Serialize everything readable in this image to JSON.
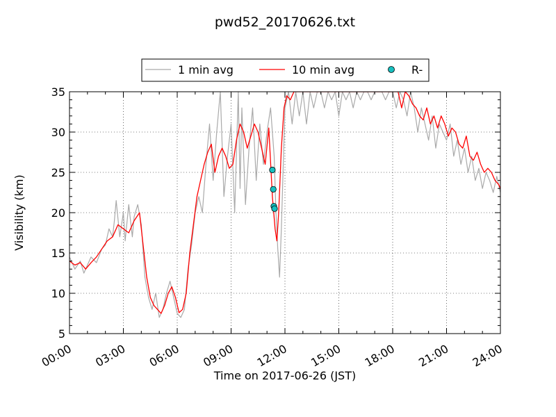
{
  "chart_data": {
    "type": "line",
    "title": "pwd52_20170626.txt",
    "xlabel": "Time on 2017-06-26 (JST)",
    "ylabel": "Visibility (km)",
    "xlim_hours": [
      0,
      24
    ],
    "ylim": [
      5,
      35
    ],
    "x_tick_labels": [
      "00:00",
      "03:00",
      "06:00",
      "09:00",
      "12:00",
      "15:00",
      "18:00",
      "21:00",
      "24:00"
    ],
    "y_ticks": [
      5,
      10,
      15,
      20,
      25,
      30,
      35
    ],
    "grid": true,
    "legend_position": "top-center",
    "series": [
      {
        "name": "1 min avg",
        "color": "#a9a9a9",
        "style": "line",
        "x_hours": [
          0,
          0.3,
          0.6,
          0.8,
          1.0,
          1.2,
          1.5,
          1.8,
          2.0,
          2.2,
          2.4,
          2.5,
          2.6,
          2.8,
          3.0,
          3.1,
          3.3,
          3.5,
          3.6,
          3.8,
          4.0,
          4.2,
          4.4,
          4.6,
          4.8,
          5.0,
          5.2,
          5.4,
          5.6,
          5.8,
          6.0,
          6.2,
          6.4,
          6.6,
          6.8,
          7.0,
          7.2,
          7.4,
          7.6,
          7.8,
          8.0,
          8.2,
          8.4,
          8.6,
          8.8,
          9.0,
          9.2,
          9.4,
          9.5,
          9.6,
          9.8,
          10.0,
          10.2,
          10.4,
          10.6,
          10.8,
          11.0,
          11.2,
          11.4,
          11.5,
          11.6,
          11.7,
          11.8,
          12.0,
          12.2,
          12.4,
          12.6,
          12.8,
          13.0,
          13.2,
          13.4,
          13.6,
          13.8,
          14.0,
          14.2,
          14.4,
          14.6,
          14.8,
          15.0,
          15.2,
          15.4,
          15.6,
          15.8,
          16.0,
          16.2,
          16.4,
          16.6,
          16.8,
          17.0,
          17.2,
          17.4,
          17.6,
          17.8,
          18.0,
          18.2,
          18.4,
          18.6,
          18.8,
          19.0,
          19.2,
          19.4,
          19.6,
          19.8,
          20.0,
          20.2,
          20.4,
          20.6,
          20.8,
          21.0,
          21.2,
          21.4,
          21.6,
          21.8,
          22.0,
          22.2,
          22.4,
          22.6,
          22.8,
          23.0,
          23.2,
          23.4,
          23.6,
          23.8,
          24.0
        ],
        "values": [
          14.5,
          13.0,
          14.0,
          12.5,
          13.5,
          14.5,
          13.8,
          15.5,
          16.0,
          18.0,
          17.0,
          19.0,
          21.5,
          17.0,
          20.0,
          16.5,
          21.0,
          17.0,
          19.5,
          21.0,
          18.5,
          12.0,
          9.5,
          8.0,
          10.0,
          7.0,
          8.0,
          10.0,
          11.5,
          9.5,
          7.5,
          7.0,
          8.0,
          13.0,
          16.0,
          20.0,
          22.0,
          20.0,
          26.0,
          31.0,
          24.0,
          30.0,
          35.0,
          22.0,
          27.0,
          31.0,
          20.0,
          35.0,
          23.0,
          33.0,
          21.0,
          28.0,
          33.0,
          24.0,
          31.0,
          26.0,
          30.0,
          33.0,
          27.0,
          20.0,
          15.5,
          12.0,
          18.0,
          33.0,
          35.0,
          31.0,
          35.0,
          32.0,
          35.0,
          31.0,
          35.0,
          33.0,
          35.0,
          35.0,
          33.0,
          35.0,
          34.0,
          35.0,
          32.0,
          35.0,
          34.0,
          35.0,
          33.0,
          35.0,
          34.0,
          35.0,
          35.0,
          34.0,
          35.0,
          35.0,
          35.0,
          34.0,
          35.0,
          35.0,
          33.0,
          35.0,
          34.0,
          32.0,
          35.0,
          33.0,
          30.0,
          33.0,
          31.0,
          29.0,
          32.0,
          28.0,
          31.0,
          30.0,
          29.0,
          31.0,
          27.0,
          29.0,
          26.0,
          28.0,
          25.0,
          27.0,
          24.0,
          25.5,
          23.0,
          25.0,
          24.0,
          22.5,
          24.5,
          22.5
        ]
      },
      {
        "name": "10 min avg",
        "color": "#ff0000",
        "style": "line",
        "x_hours": [
          0,
          0.3,
          0.6,
          0.9,
          1.2,
          1.5,
          1.8,
          2.1,
          2.4,
          2.7,
          3.0,
          3.3,
          3.6,
          3.9,
          4.1,
          4.3,
          4.5,
          4.7,
          4.9,
          5.1,
          5.3,
          5.5,
          5.7,
          5.9,
          6.1,
          6.3,
          6.5,
          6.7,
          6.9,
          7.1,
          7.3,
          7.5,
          7.7,
          7.9,
          8.1,
          8.3,
          8.5,
          8.7,
          8.9,
          9.1,
          9.3,
          9.5,
          9.7,
          9.9,
          10.1,
          10.3,
          10.5,
          10.7,
          10.9,
          11.1,
          11.3,
          11.45,
          11.55,
          11.65,
          11.8,
          11.95,
          12.1,
          12.3,
          12.5,
          12.7,
          12.9,
          13.1,
          13.3,
          13.5,
          13.7,
          13.9,
          14.1,
          14.3,
          14.5,
          14.7,
          14.9,
          15.1,
          15.3,
          15.5,
          15.7,
          15.9,
          16.1,
          16.3,
          16.5,
          16.7,
          16.9,
          17.1,
          17.3,
          17.5,
          17.7,
          17.9,
          18.1,
          18.3,
          18.5,
          18.7,
          18.9,
          19.1,
          19.3,
          19.5,
          19.7,
          19.9,
          20.1,
          20.3,
          20.5,
          20.7,
          20.9,
          21.1,
          21.3,
          21.5,
          21.7,
          21.9,
          22.1,
          22.3,
          22.5,
          22.7,
          22.9,
          23.1,
          23.3,
          23.5,
          23.7,
          23.9,
          24.0
        ],
        "values": [
          14.0,
          13.5,
          13.8,
          13.0,
          13.8,
          14.5,
          15.5,
          16.5,
          17.0,
          18.5,
          18.0,
          17.5,
          19.0,
          20.0,
          16.0,
          12.0,
          9.5,
          8.5,
          8.0,
          7.5,
          8.5,
          10.0,
          10.8,
          9.5,
          7.6,
          8.0,
          10.0,
          15.0,
          18.5,
          22.0,
          24.0,
          26.0,
          27.5,
          28.5,
          25.0,
          27.0,
          28.0,
          27.0,
          25.5,
          26.0,
          29.0,
          31.0,
          30.0,
          28.0,
          29.5,
          31.0,
          30.0,
          28.0,
          26.0,
          30.5,
          22.0,
          18.0,
          16.5,
          20.0,
          28.0,
          33.0,
          34.5,
          34.0,
          35.0,
          35.0,
          35.0,
          35.0,
          35.0,
          35.0,
          35.0,
          35.0,
          35.0,
          35.0,
          35.0,
          35.0,
          35.0,
          35.0,
          35.0,
          35.0,
          35.0,
          35.0,
          35.0,
          35.0,
          35.0,
          35.0,
          35.0,
          35.0,
          35.0,
          35.0,
          35.0,
          35.0,
          35.0,
          35.0,
          33.0,
          35.0,
          34.5,
          33.5,
          33.0,
          32.0,
          31.5,
          33.0,
          31.0,
          32.0,
          30.5,
          32.0,
          31.0,
          29.5,
          30.5,
          30.0,
          28.5,
          28.0,
          29.5,
          27.0,
          26.5,
          27.5,
          26.0,
          25.0,
          25.5,
          25.0,
          24.0,
          23.5,
          23.0
        ]
      },
      {
        "name": "R-",
        "color": "#17bfbf",
        "style": "marker",
        "x_hours": [
          11.3,
          11.35,
          11.38,
          11.42
        ],
        "values": [
          25.3,
          22.9,
          20.8,
          20.5
        ]
      }
    ]
  }
}
